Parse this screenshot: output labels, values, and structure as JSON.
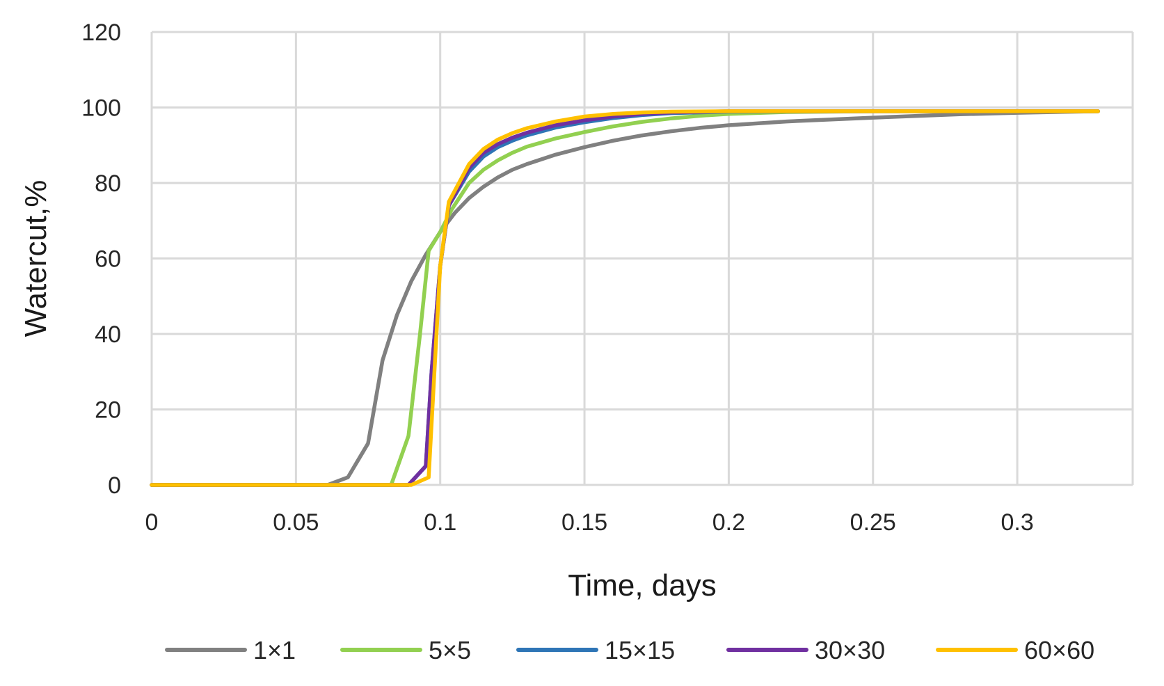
{
  "chart_data": {
    "type": "line",
    "title": "",
    "xlabel": "Time, days",
    "ylabel": "Watercut,%",
    "xlim": [
      0,
      0.34
    ],
    "ylim": [
      0,
      120
    ],
    "x_ticks": [
      0,
      0.05,
      0.1,
      0.15,
      0.2,
      0.25,
      0.3
    ],
    "x_tick_labels": [
      "0",
      "0.05",
      "0.1",
      "0.15",
      "0.2",
      "0.25",
      "0.3"
    ],
    "y_ticks": [
      0,
      20,
      40,
      60,
      80,
      100,
      120
    ],
    "y_tick_labels": [
      "0",
      "20",
      "40",
      "60",
      "80",
      "100",
      "120"
    ],
    "grid": true,
    "legend_position": "bottom",
    "series": [
      {
        "name": "1×1",
        "color": "#808080",
        "points": [
          [
            0,
            0
          ],
          [
            0.061,
            0
          ],
          [
            0.068,
            2
          ],
          [
            0.075,
            11
          ],
          [
            0.08,
            33
          ],
          [
            0.085,
            45
          ],
          [
            0.09,
            54
          ],
          [
            0.095,
            61
          ],
          [
            0.1,
            67
          ],
          [
            0.105,
            72
          ],
          [
            0.11,
            76
          ],
          [
            0.115,
            79
          ],
          [
            0.12,
            81.5
          ],
          [
            0.125,
            83.5
          ],
          [
            0.13,
            85
          ],
          [
            0.14,
            87.5
          ],
          [
            0.15,
            89.5
          ],
          [
            0.16,
            91.2
          ],
          [
            0.17,
            92.6
          ],
          [
            0.18,
            93.7
          ],
          [
            0.19,
            94.6
          ],
          [
            0.2,
            95.3
          ],
          [
            0.22,
            96.3
          ],
          [
            0.25,
            97.3
          ],
          [
            0.28,
            98.2
          ],
          [
            0.3,
            98.6
          ],
          [
            0.328,
            99
          ]
        ]
      },
      {
        "name": "5×5",
        "color": "#92d050",
        "points": [
          [
            0,
            0
          ],
          [
            0.083,
            0
          ],
          [
            0.089,
            13
          ],
          [
            0.093,
            40
          ],
          [
            0.096,
            62
          ],
          [
            0.1,
            67
          ],
          [
            0.104,
            73
          ],
          [
            0.11,
            80
          ],
          [
            0.115,
            83.5
          ],
          [
            0.12,
            86
          ],
          [
            0.125,
            88
          ],
          [
            0.13,
            89.6
          ],
          [
            0.14,
            91.8
          ],
          [
            0.15,
            93.5
          ],
          [
            0.16,
            95
          ],
          [
            0.17,
            96.2
          ],
          [
            0.18,
            97.1
          ],
          [
            0.19,
            97.8
          ],
          [
            0.2,
            98.3
          ],
          [
            0.22,
            98.8
          ],
          [
            0.25,
            99
          ],
          [
            0.3,
            99
          ],
          [
            0.328,
            99
          ]
        ]
      },
      {
        "name": "15×15",
        "color": "#2e75b6",
        "points": [
          [
            0,
            0
          ],
          [
            0.089,
            0
          ],
          [
            0.095,
            5
          ],
          [
            0.097,
            30
          ],
          [
            0.1,
            58
          ],
          [
            0.103,
            74
          ],
          [
            0.11,
            83
          ],
          [
            0.115,
            87
          ],
          [
            0.12,
            89.5
          ],
          [
            0.125,
            91.2
          ],
          [
            0.13,
            92.6
          ],
          [
            0.14,
            94.7
          ],
          [
            0.15,
            96.1
          ],
          [
            0.16,
            97.2
          ],
          [
            0.17,
            98
          ],
          [
            0.18,
            98.5
          ],
          [
            0.2,
            98.9
          ],
          [
            0.25,
            99
          ],
          [
            0.3,
            99
          ],
          [
            0.328,
            99
          ]
        ]
      },
      {
        "name": "30×30",
        "color": "#7030a0",
        "points": [
          [
            0,
            0
          ],
          [
            0.089,
            0
          ],
          [
            0.095,
            5
          ],
          [
            0.097,
            30
          ],
          [
            0.1,
            58
          ],
          [
            0.103,
            74
          ],
          [
            0.11,
            84
          ],
          [
            0.115,
            88
          ],
          [
            0.12,
            90.3
          ],
          [
            0.125,
            92
          ],
          [
            0.13,
            93.3
          ],
          [
            0.14,
            95.3
          ],
          [
            0.15,
            96.6
          ],
          [
            0.16,
            97.6
          ],
          [
            0.17,
            98.3
          ],
          [
            0.18,
            98.7
          ],
          [
            0.2,
            99
          ],
          [
            0.25,
            99
          ],
          [
            0.3,
            99
          ],
          [
            0.328,
            99
          ]
        ]
      },
      {
        "name": "60×60",
        "color": "#ffc000",
        "points": [
          [
            0,
            0
          ],
          [
            0.09,
            0
          ],
          [
            0.096,
            2
          ],
          [
            0.098,
            30
          ],
          [
            0.1,
            58
          ],
          [
            0.103,
            75
          ],
          [
            0.11,
            85
          ],
          [
            0.115,
            89
          ],
          [
            0.12,
            91.5
          ],
          [
            0.125,
            93.2
          ],
          [
            0.13,
            94.5
          ],
          [
            0.14,
            96.3
          ],
          [
            0.15,
            97.6
          ],
          [
            0.16,
            98.3
          ],
          [
            0.17,
            98.7
          ],
          [
            0.18,
            98.9
          ],
          [
            0.2,
            99
          ],
          [
            0.25,
            99
          ],
          [
            0.3,
            99
          ],
          [
            0.328,
            99
          ]
        ]
      }
    ]
  }
}
